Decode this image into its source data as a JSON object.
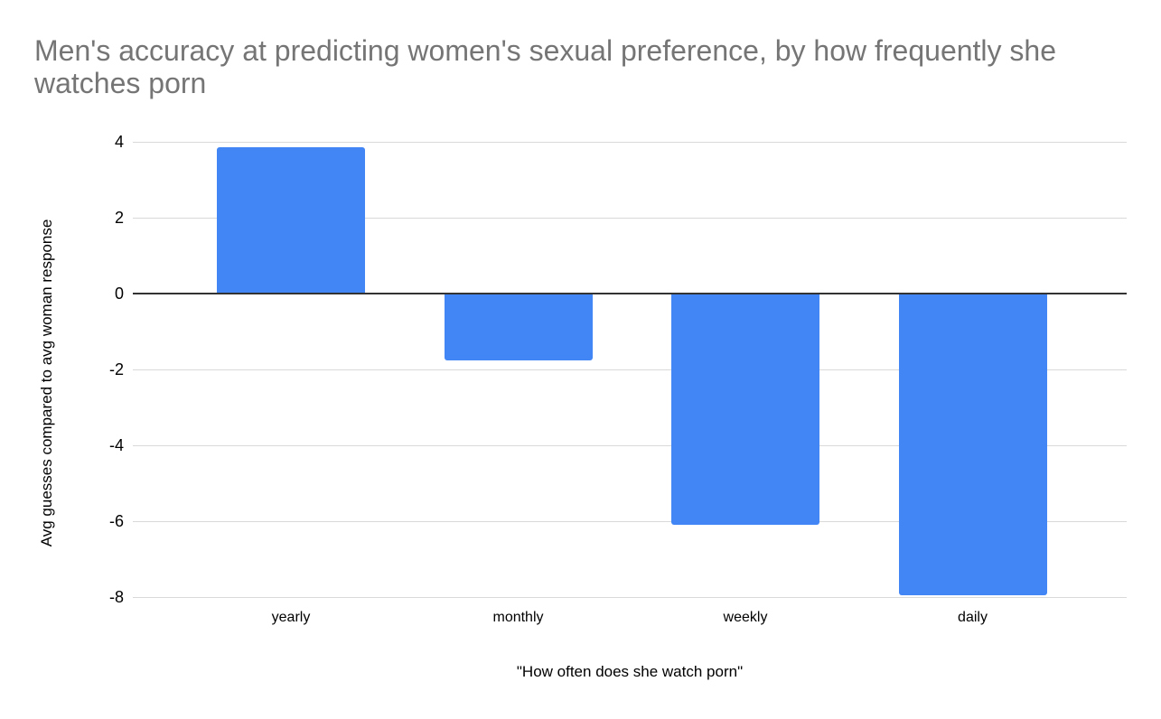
{
  "chart_data": {
    "type": "bar",
    "title": "Men's accuracy at predicting women's sexual preference, by how frequently she watches porn",
    "categories": [
      "yearly",
      "monthly",
      "weekly",
      "daily"
    ],
    "values": [
      3.85,
      -1.75,
      -6.1,
      -7.95
    ],
    "series": [
      {
        "name": "Avg guesses compared to avg woman response",
        "values": [
          3.85,
          -1.75,
          -6.1,
          -7.95
        ]
      }
    ],
    "xlabel": "\"How often does she watch porn\"",
    "ylabel": "Avg guesses compared to avg woman response",
    "ylim": [
      -8,
      4
    ],
    "yticks": [
      4,
      2,
      0,
      -2,
      -4,
      -6,
      -8
    ],
    "grid": true,
    "legend": "none",
    "colors": {
      "bar": "#4285f4",
      "gridline": "#d9d9d9",
      "zero_line": "#333333",
      "title_text": "#757575",
      "axis_text": "#000000",
      "background": "#ffffff"
    }
  }
}
